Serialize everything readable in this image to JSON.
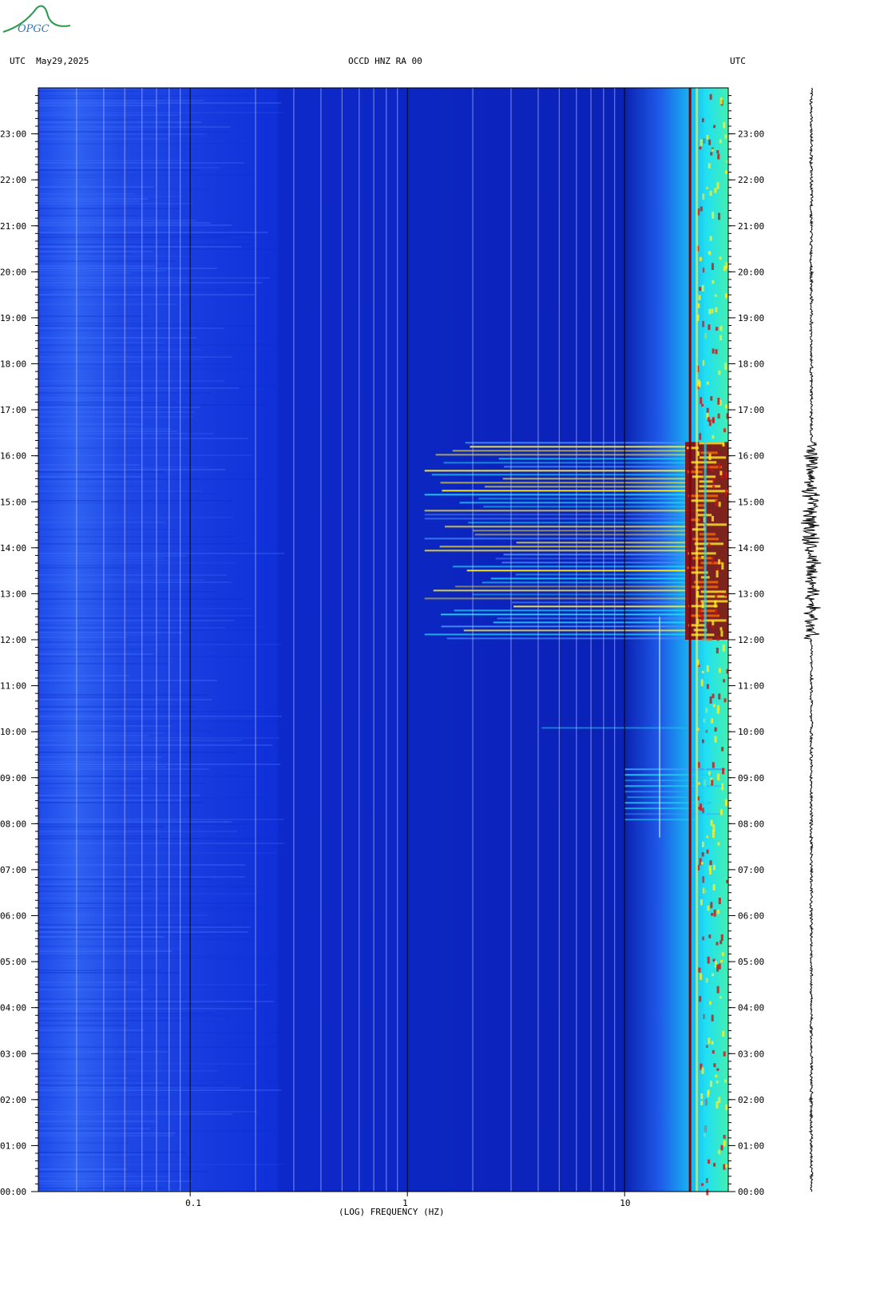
{
  "header": {
    "left_label": "UTC  May29,2025",
    "center_label": "OCCD HNZ RA 00",
    "right_label": "UTC"
  },
  "logo": {
    "text": "OPGC"
  },
  "colors": {
    "background_blue": "#0f2fd8",
    "dark_blue": "#0a1fb0",
    "cyan": "#22e0f0",
    "yellow": "#ffee22",
    "dark_red": "#8a0000",
    "trace": "#000000"
  },
  "chart_data": {
    "type": "heatmap",
    "title": "OCCD HNZ RA 00",
    "xlabel": "(LOG) FREQUENCY (HZ)",
    "x_scale": "log",
    "xlim": [
      0.02,
      30
    ],
    "x_ticks": [
      {
        "value": 0.1,
        "label": "0.1"
      },
      {
        "value": 1,
        "label": "1"
      },
      {
        "value": 10,
        "label": "10"
      }
    ],
    "y_ticks_left": [
      "23:00",
      "22:00",
      "21:00",
      "20:00",
      "19:00",
      "18:00",
      "17:00",
      "16:00",
      "15:00",
      "14:00",
      "13:00",
      "12:00",
      "11:00",
      "10:00",
      "09:00",
      "08:00",
      "07:00",
      "06:00",
      "05:00",
      "04:00",
      "03:00",
      "02:00",
      "01:00",
      "00:00"
    ],
    "y_ticks_right": [
      "23:00",
      "22:00",
      "21:00",
      "20:00",
      "19:00",
      "18:00",
      "17:00",
      "16:00",
      "15:00",
      "14:00",
      "13:00",
      "12:00",
      "11:00",
      "10:00",
      "09:00",
      "08:00",
      "07:00",
      "06:00",
      "05:00",
      "04:00",
      "03:00",
      "02:00",
      "01:00",
      "00:00"
    ],
    "ylim_hours": [
      0,
      24
    ],
    "events": [
      {
        "start_hour": 12.0,
        "end_hour": 16.3,
        "min_freq": 1.2,
        "level": "high"
      },
      {
        "start_hour": 8.0,
        "end_hour": 9.2,
        "min_freq": 10,
        "level": "medium"
      },
      {
        "start_hour": 10.0,
        "end_hour": 10.1,
        "min_freq": 3,
        "level": "low"
      }
    ],
    "persistent_lines_hz": [
      20,
      21.5,
      23.5
    ]
  }
}
